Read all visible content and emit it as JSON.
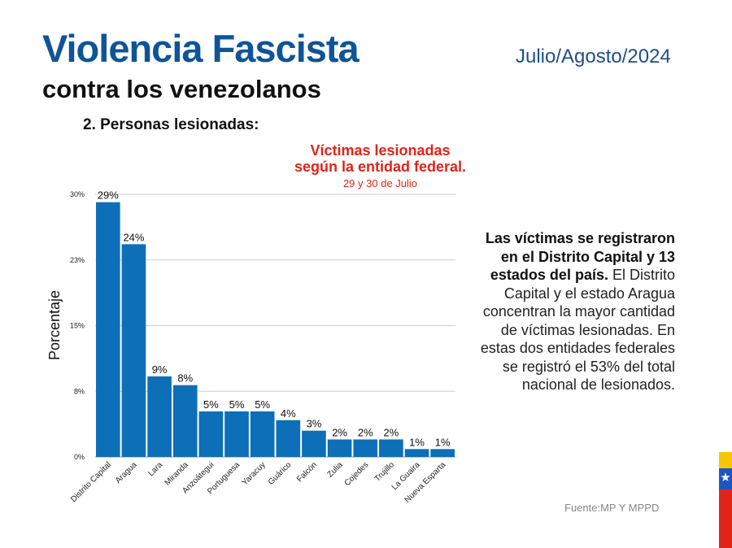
{
  "header": {
    "title": "Violencia Fascista",
    "subtitle": "contra los venezolanos",
    "date": "Julio/Agosto/2024",
    "section": "2.  Personas lesionadas:"
  },
  "chart_title": {
    "line1": "Víctimas lesionadas",
    "line2": "según la entidad federal.",
    "subtitle": "29 y 30 de Julio"
  },
  "chart_data": {
    "type": "bar",
    "title": "Víctimas lesionadas según la entidad federal.",
    "subtitle": "29 y 30 de Julio",
    "xlabel": "",
    "ylabel": "Porcentaje",
    "categories": [
      "Distrito Capital",
      "Aragua",
      "Lara",
      "Miranda",
      "Anzoátegui",
      "Portuguesa",
      "Yaracuy",
      "Guárico",
      "Falcón",
      "Zulia",
      "Cojedes",
      "Trujillo",
      "La Guaira",
      "Nueva Esparta"
    ],
    "values": [
      29,
      24,
      9,
      8,
      5,
      5,
      5,
      4,
      3,
      2,
      2,
      2,
      1,
      1
    ],
    "bar_heights": [
      29.1,
      24.3,
      9.2,
      8.2,
      5.2,
      5.2,
      5.2,
      4.2,
      3.0,
      2.0,
      2.0,
      2.0,
      0.9,
      0.9
    ],
    "value_labels": [
      "29%",
      "24%",
      "9%",
      "8%",
      "5%",
      "5%",
      "5%",
      "4%",
      "3%",
      "2%",
      "2%",
      "2%",
      "1%",
      "1%"
    ],
    "yticks": [
      {
        "value": 0,
        "label": "0%"
      },
      {
        "value": 7.5,
        "label": "8%"
      },
      {
        "value": 15,
        "label": "15%"
      },
      {
        "value": 22.5,
        "label": "23%"
      },
      {
        "value": 30,
        "label": "30%"
      }
    ],
    "ylim": [
      0,
      30
    ],
    "grid": true,
    "bar_color": "#0d6fb8"
  },
  "side_note": {
    "bold": "Las víctimas se registraron en el Distrito Capital y 13 estados del país.",
    "text": "El Distrito Capital y el estado Aragua concentran la mayor cantidad de víctimas lesionadas. En estas dos entidades federales se registró el 53% del total nacional de lesionados."
  },
  "source": "Fuente:MP Y MPPD",
  "colors": {
    "title_blue": "#0e5597",
    "accent_red": "#e2231a",
    "flag_yellow": "#f7c600",
    "flag_blue": "#1b56c2",
    "flag_red": "#e2231a"
  }
}
